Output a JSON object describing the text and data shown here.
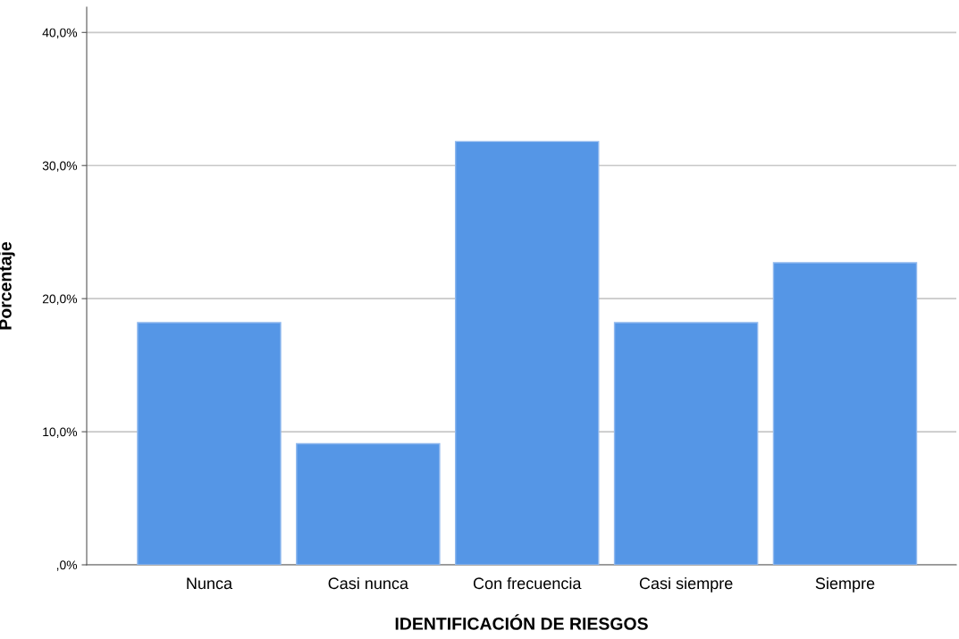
{
  "chart_data": {
    "type": "bar",
    "xlabel": "IDENTIFICACIÓN DE RIESGOS",
    "ylabel": "Porcentaje",
    "categories": [
      "Nunca",
      "Casi nunca",
      "Con frecuencia",
      "Casi siempre",
      "Siempre"
    ],
    "values": [
      18.2,
      9.1,
      31.8,
      18.2,
      22.7
    ],
    "color": "#5596e6",
    "ylim": [
      0,
      41.9
    ],
    "yticks": [
      {
        "value": 0,
        "label": ",0%"
      },
      {
        "value": 10,
        "label": "10,0%"
      },
      {
        "value": 20,
        "label": "20,0%"
      },
      {
        "value": 30,
        "label": "30,0%"
      },
      {
        "value": 40,
        "label": "40,0%"
      }
    ],
    "grid": "y",
    "legend": false
  }
}
